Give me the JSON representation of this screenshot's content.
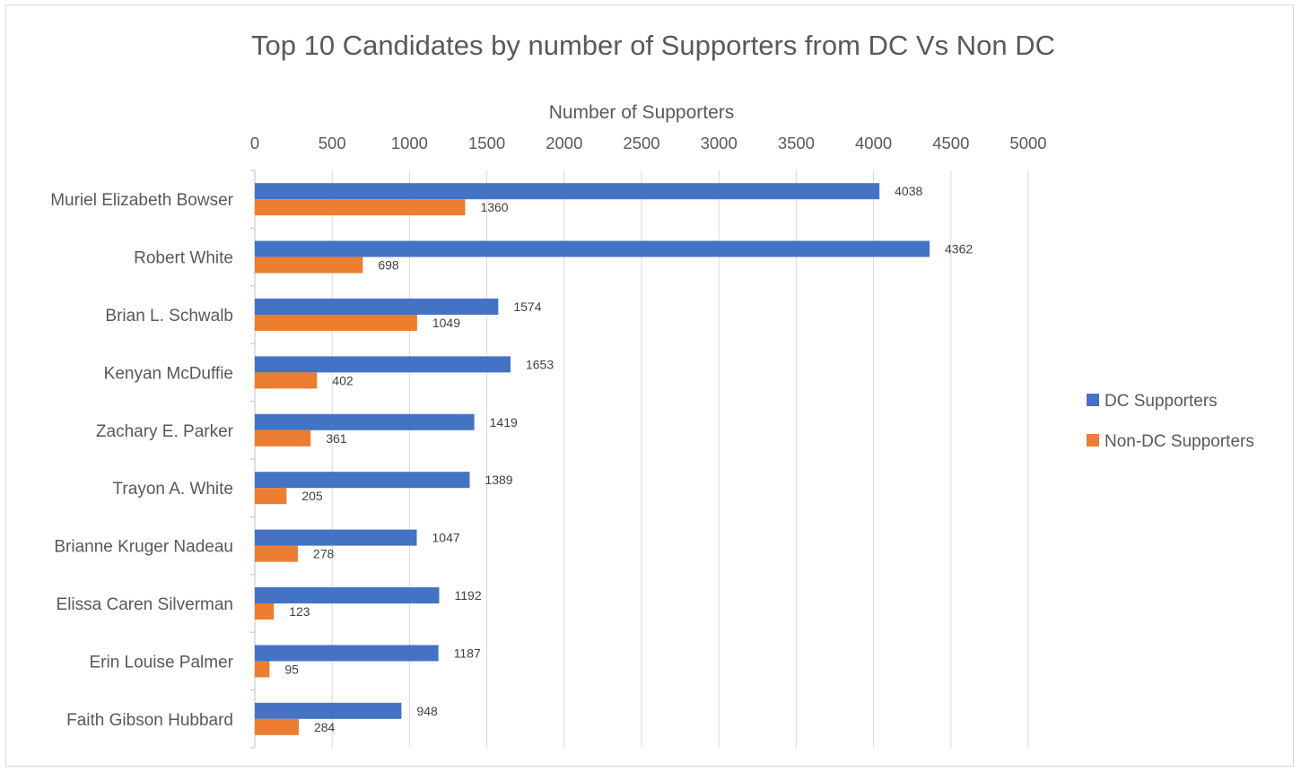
{
  "chart_data": {
    "type": "bar",
    "orientation": "horizontal",
    "title": "Top 10 Candidates by number of Supporters from DC Vs Non DC",
    "xlabel": "Number of Supporters",
    "ylabel": "",
    "xlim": [
      0,
      5000
    ],
    "x_ticks": [
      "0",
      "500",
      "1000",
      "1500",
      "2000",
      "2500",
      "3000",
      "3500",
      "4000",
      "4500",
      "5000"
    ],
    "x_axis_position": "top",
    "grid": true,
    "legend_position": "right",
    "categories": [
      "Muriel Elizabeth Bowser",
      "Robert White",
      "Brian L. Schwalb",
      "Kenyan McDuffie",
      "Zachary E. Parker",
      "Trayon A. White",
      "Brianne Kruger Nadeau",
      "Elissa Caren Silverman",
      "Erin Louise Palmer",
      "Faith Gibson Hubbard"
    ],
    "series": [
      {
        "name": "DC Supporters",
        "color": "#4472c4",
        "values": [
          4038,
          4362,
          1574,
          1653,
          1419,
          1389,
          1047,
          1192,
          1187,
          948
        ],
        "labels": [
          "4038",
          "4362",
          "1574",
          "1653",
          "1419",
          "1389",
          "1047",
          "1192",
          "1187",
          "948"
        ]
      },
      {
        "name": "Non-DC Supporters",
        "color": "#ed7d31",
        "values": [
          1360,
          698,
          1049,
          402,
          361,
          205,
          278,
          123,
          95,
          284
        ],
        "labels": [
          "1360",
          "698",
          "1049",
          "402",
          "361",
          "205",
          "278",
          "123",
          "95",
          "284"
        ]
      }
    ]
  }
}
